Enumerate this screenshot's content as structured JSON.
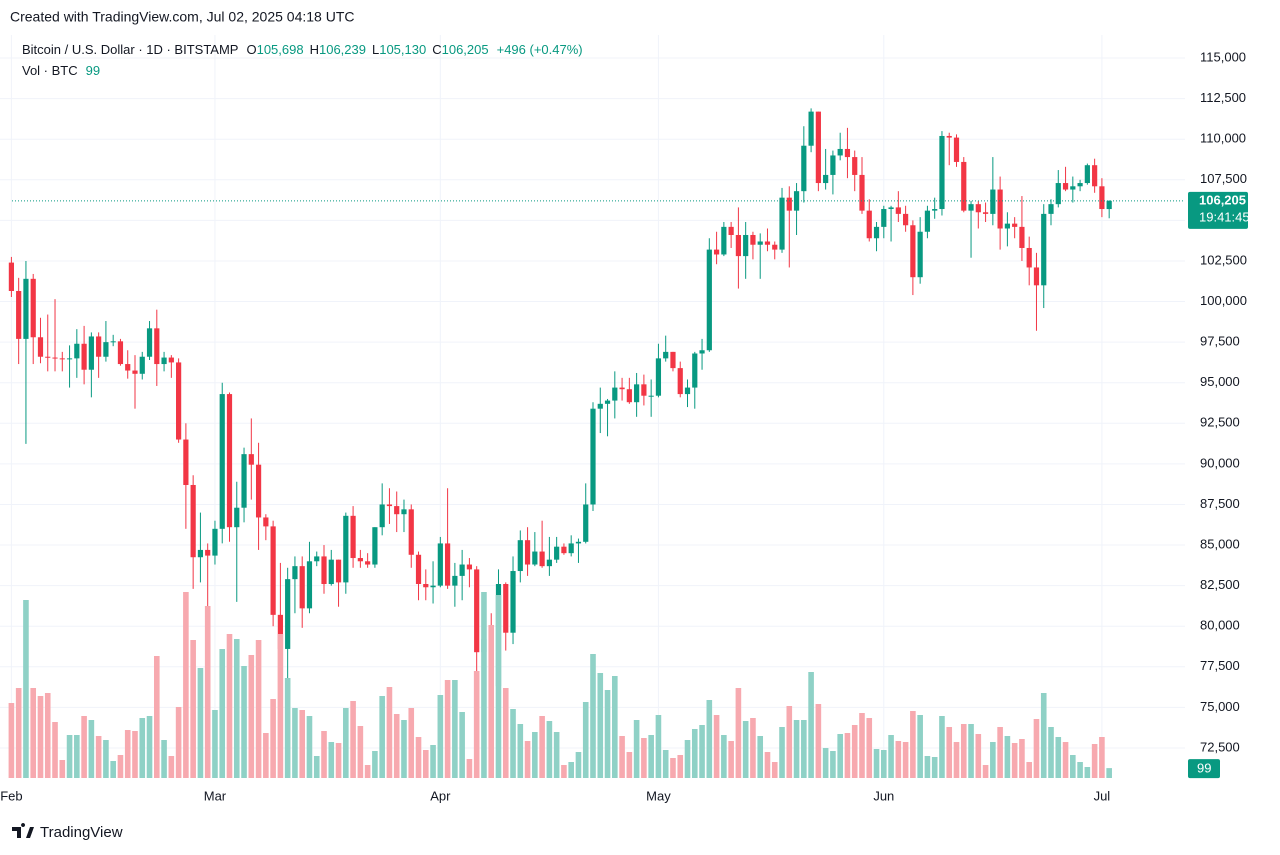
{
  "caption": "Created with TradingView.com, Jul 02, 2025 04:18 UTC",
  "footer": "TradingView",
  "chart_data": {
    "type": "candlestick",
    "ohlc_legend": [
      {
        "key": "O",
        "value": "105,698"
      },
      {
        "key": "H",
        "value": "106,239"
      },
      {
        "key": "L",
        "value": "105,130"
      },
      {
        "key": "C",
        "value": "106,205"
      }
    ],
    "change": "+496 (+0.47%)",
    "last_price_label": "106,205",
    "countdown": "19:41:45",
    "categories": [
      "Feb",
      null,
      null,
      null,
      null,
      null,
      null,
      null,
      null,
      null,
      null,
      null,
      null,
      null,
      null,
      null,
      null,
      null,
      null,
      null,
      null,
      null,
      null,
      null,
      null,
      null,
      null,
      null,
      "Mar",
      null,
      null,
      null,
      null,
      null,
      null,
      null,
      null,
      null,
      null,
      null,
      null,
      null,
      null,
      null,
      null,
      null,
      null,
      null,
      null,
      null,
      null,
      null,
      null,
      null,
      null,
      null,
      null,
      null,
      null,
      "Apr",
      null,
      null,
      null,
      null,
      null,
      null,
      null,
      null,
      null,
      null,
      null,
      null,
      null,
      null,
      null,
      null,
      null,
      null,
      null,
      null,
      null,
      null,
      null,
      null,
      null,
      null,
      null,
      null,
      null,
      "May",
      null,
      null,
      null,
      null,
      null,
      null,
      null,
      null,
      null,
      null,
      null,
      null,
      null,
      null,
      null,
      null,
      null,
      null,
      null,
      null,
      null,
      null,
      null,
      null,
      null,
      null,
      null,
      null,
      null,
      null,
      "Jun",
      null,
      null,
      null,
      null,
      null,
      null,
      null,
      null,
      null,
      null,
      null,
      null,
      null,
      null,
      null,
      null,
      null,
      null,
      null,
      null,
      null,
      null,
      null,
      null,
      null,
      null,
      null,
      null,
      null,
      "Jul",
      null
    ],
    "series": [
      {
        "name": "Bitcoin / U.S. Dollar · 1D · BITSTAMP",
        "up_color": "#089981",
        "down_color": "#f23645",
        "open": [
          102400,
          100650,
          97700,
          101400,
          97800,
          96600,
          96550,
          96500,
          96450,
          96500,
          97400,
          95800,
          97850,
          96600,
          97500,
          97550,
          96150,
          95750,
          95550,
          96600,
          98350,
          96150,
          96550,
          96250,
          91500,
          88700,
          84250,
          84700,
          84350,
          86000,
          94300,
          86100,
          87300,
          90600,
          89950,
          86700,
          86150,
          80700,
          78600,
          82900,
          83700,
          81100,
          84000,
          84300,
          82600,
          84100,
          82700,
          86800,
          84200,
          84000,
          83800,
          86100,
          87500,
          87400,
          86900,
          87200,
          84400,
          82600,
          82400,
          82500,
          85100,
          82500,
          83100,
          83800,
          83500,
          78400,
          79200,
          76300,
          82600,
          79600,
          83400,
          85300,
          83800,
          84600,
          83700,
          84100,
          84900,
          84500,
          85100,
          85200,
          87500,
          93400,
          93700,
          93900,
          94700,
          94600,
          93800,
          94900,
          94200,
          94200,
          96500,
          96900,
          95900,
          94300,
          94700,
          96800,
          97000,
          103200,
          102900,
          104600,
          104100,
          102800,
          104100,
          103500,
          103700,
          103500,
          103200,
          106400,
          105600,
          106800,
          109600,
          111700,
          107300,
          107800,
          109000,
          109400,
          108900,
          107800,
          105600,
          103900,
          104600,
          105700,
          105800,
          105400,
          104700,
          101500,
          104300,
          105600,
          105700,
          110200,
          110100,
          108600,
          105600,
          106000,
          105500,
          105400,
          106900,
          104500,
          104800,
          104600,
          103300,
          102100,
          101000,
          105400,
          106000,
          107300,
          106900,
          107100,
          107300,
          108400,
          107100,
          105698
        ],
        "high": [
          102750,
          101460,
          102500,
          101700,
          99000,
          99200,
          100150,
          96900,
          97300,
          98300,
          98500,
          98100,
          98100,
          98800,
          97950,
          97700,
          97000,
          96700,
          96900,
          98800,
          99500,
          96900,
          96700,
          96500,
          92500,
          89300,
          87000,
          85100,
          86500,
          95000,
          94400,
          88900,
          91000,
          92800,
          91300,
          86900,
          86500,
          83900,
          83600,
          84300,
          84300,
          85200,
          84600,
          85000,
          84700,
          84100,
          87000,
          87400,
          84700,
          84500,
          86100,
          88800,
          88500,
          88300,
          87800,
          87500,
          84600,
          83500,
          84000,
          85500,
          88500,
          83900,
          84700,
          84200,
          83700,
          81100,
          80800,
          83500,
          82700,
          84300,
          85900,
          86100,
          85800,
          86500,
          85500,
          85500,
          85100,
          85600,
          85400,
          88800,
          93800,
          94700,
          94000,
          95700,
          95300,
          95300,
          95600,
          95500,
          95200,
          97400,
          97900,
          96900,
          96300,
          95200,
          96900,
          97700,
          103900,
          104300,
          104900,
          104900,
          105800,
          104900,
          104300,
          104200,
          104500,
          103700,
          107000,
          107100,
          107300,
          110800,
          111900,
          111700,
          109400,
          109300,
          110400,
          110700,
          109300,
          108900,
          106300,
          104900,
          105900,
          105900,
          106800,
          105900,
          105000,
          105200,
          105900,
          106400,
          110500,
          110400,
          110300,
          108900,
          106200,
          106200,
          106100,
          108900,
          107700,
          105500,
          105200,
          106500,
          104000,
          103000,
          106000,
          106300,
          108100,
          108300,
          107700,
          107500,
          108500,
          108800,
          107600,
          106239
        ],
        "low": [
          100280,
          96150,
          91230,
          96150,
          96200,
          95700,
          95700,
          95700,
          94700,
          95300,
          94900,
          94100,
          95300,
          96300,
          97250,
          96050,
          95250,
          93400,
          95200,
          96400,
          94800,
          95700,
          95300,
          91300,
          86000,
          82300,
          82700,
          78300,
          83800,
          85100,
          85200,
          81500,
          86400,
          87800,
          84700,
          85300,
          80000,
          77500,
          76600,
          80800,
          79900,
          80800,
          83700,
          82000,
          82500,
          81200,
          82000,
          83600,
          83600,
          83600,
          83600,
          85600,
          86300,
          85800,
          85800,
          83600,
          81600,
          81600,
          81400,
          82400,
          82300,
          81200,
          81600,
          82400,
          77200,
          74500,
          76200,
          74600,
          78500,
          78900,
          82700,
          83100,
          83700,
          83600,
          83100,
          83900,
          84400,
          84300,
          83900,
          85100,
          87100,
          91900,
          91700,
          92800,
          93900,
          93700,
          92900,
          93600,
          92900,
          94100,
          96300,
          95700,
          94100,
          93500,
          93400,
          95800,
          96900,
          102300,
          102800,
          103300,
          100800,
          101400,
          102600,
          101400,
          103100,
          102600,
          103000,
          102100,
          104100,
          106100,
          109200,
          106800,
          106900,
          106600,
          108700,
          107600,
          106800,
          105400,
          103700,
          103100,
          103900,
          103700,
          104900,
          104300,
          100400,
          101100,
          103900,
          105100,
          105300,
          108400,
          108300,
          105500,
          102700,
          104500,
          104900,
          104700,
          103200,
          103400,
          103900,
          102500,
          101000,
          98200,
          99600,
          104700,
          105800,
          106800,
          106100,
          106800,
          107200,
          106700,
          105200,
          105130
        ],
        "close": [
          100650,
          97700,
          101400,
          97800,
          96600,
          96550,
          96500,
          96450,
          96500,
          97400,
          95800,
          97850,
          96600,
          97500,
          97550,
          96150,
          95750,
          95550,
          96600,
          98350,
          96150,
          96550,
          96250,
          91500,
          88700,
          84250,
          84700,
          84350,
          86000,
          94300,
          86100,
          87300,
          90600,
          89950,
          86700,
          86150,
          80700,
          78600,
          82900,
          83700,
          81100,
          84000,
          84300,
          82600,
          84100,
          82700,
          86800,
          84200,
          84000,
          83800,
          86100,
          87500,
          87400,
          86900,
          87200,
          84400,
          82600,
          82400,
          82500,
          85100,
          82500,
          83100,
          83800,
          83500,
          78400,
          79200,
          76300,
          82600,
          79600,
          83400,
          85300,
          83800,
          84600,
          83700,
          84100,
          84900,
          84500,
          85100,
          85200,
          87500,
          93400,
          93700,
          93900,
          94700,
          94600,
          93800,
          94900,
          94200,
          94200,
          96500,
          96900,
          95900,
          94300,
          94700,
          96800,
          97000,
          103200,
          102900,
          104600,
          104100,
          102800,
          104100,
          103500,
          103700,
          103500,
          103200,
          106400,
          105600,
          106800,
          109600,
          111700,
          107300,
          107800,
          109000,
          109400,
          108900,
          107800,
          105600,
          103900,
          104600,
          105700,
          105800,
          105400,
          104700,
          101500,
          104300,
          105600,
          105700,
          110200,
          110100,
          108600,
          105600,
          106000,
          105500,
          105400,
          106900,
          104500,
          104800,
          104600,
          103300,
          102100,
          101000,
          105400,
          106000,
          107300,
          106900,
          107100,
          107300,
          108400,
          107100,
          105700,
          106205
        ]
      },
      {
        "name": "Vol · BTC",
        "axis": "y2",
        "up_color": "#8fd1c6",
        "down_color": "#f7a9af",
        "values": [
          750,
          900,
          1780,
          900,
          820,
          850,
          560,
          180,
          430,
          430,
          620,
          580,
          420,
          380,
          170,
          230,
          480,
          470,
          600,
          620,
          1220,
          380,
          220,
          710,
          1860,
          1380,
          1100,
          1720,
          680,
          1290,
          1440,
          1390,
          1120,
          1230,
          1380,
          450,
          790,
          1440,
          1000,
          700,
          680,
          620,
          220,
          470,
          360,
          350,
          700,
          770,
          520,
          130,
          270,
          820,
          910,
          640,
          580,
          700,
          410,
          280,
          330,
          830,
          980,
          980,
          660,
          190,
          1070,
          1860,
          1530,
          1830,
          900,
          690,
          540,
          370,
          460,
          620,
          570,
          460,
          130,
          160,
          260,
          760,
          1240,
          1050,
          880,
          1020,
          420,
          260,
          580,
          400,
          430,
          630,
          280,
          200,
          230,
          380,
          490,
          530,
          780,
          630,
          430,
          370,
          900,
          570,
          600,
          420,
          260,
          160,
          510,
          720,
          580,
          580,
          1060,
          740,
          300,
          270,
          440,
          450,
          530,
          650,
          600,
          290,
          280,
          430,
          370,
          360,
          670,
          630,
          220,
          210,
          620,
          510,
          360,
          540,
          540,
          440,
          130,
          360,
          510,
          420,
          350,
          390,
          160,
          590,
          850,
          510,
          410,
          360,
          230,
          160,
          110,
          340,
          410,
          99
        ]
      }
    ],
    "ylim": [
      70650,
      116420
    ],
    "yticks": [
      {
        "value": 72500,
        "label": "72,500"
      },
      {
        "value": 75000,
        "label": "75,000"
      },
      {
        "value": 77500,
        "label": "77,500"
      },
      {
        "value": 80000,
        "label": "80,000"
      },
      {
        "value": 82500,
        "label": "82,500"
      },
      {
        "value": 85000,
        "label": "85,000"
      },
      {
        "value": 87500,
        "label": "87,500"
      },
      {
        "value": 90000,
        "label": "90,000"
      },
      {
        "value": 92500,
        "label": "92,500"
      },
      {
        "value": 95000,
        "label": "95,000"
      },
      {
        "value": 97500,
        "label": "97,500"
      },
      {
        "value": 100000,
        "label": "100,000"
      },
      {
        "value": 102500,
        "label": "102,500"
      },
      {
        "value": 105000,
        "label": "105,000"
      },
      {
        "value": 107500,
        "label": "107,500"
      },
      {
        "value": 110000,
        "label": "110,000"
      },
      {
        "value": 112500,
        "label": "112,500"
      },
      {
        "value": 115000,
        "label": "115,000"
      }
    ],
    "y2lim": [
      0,
      7430
    ],
    "grid": true
  }
}
